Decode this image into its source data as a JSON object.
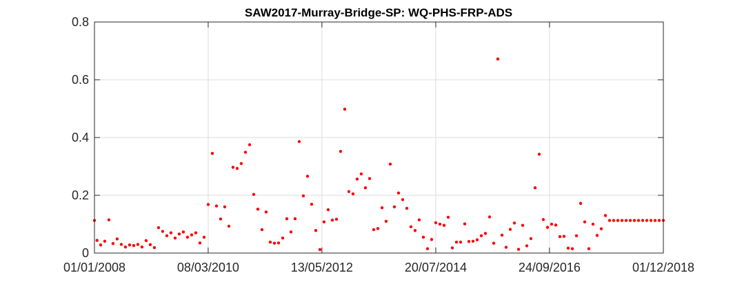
{
  "chart_data": {
    "type": "scatter",
    "title": "SAW2017-Murray-Bridge-SP: WQ-PHS-FRP-ADS",
    "xlabel": "",
    "ylabel": "",
    "x_axis_type": "date",
    "xlim": [
      "2008-01-01",
      "2018-12-01"
    ],
    "ylim": [
      0,
      0.8
    ],
    "x_ticks": [
      "2008-01-01",
      "2010-03-08",
      "2012-05-13",
      "2014-07-20",
      "2016-09-24",
      "2018-12-01"
    ],
    "x_tick_labels": [
      "01/01/2008",
      "08/03/2010",
      "13/05/2012",
      "20/07/2014",
      "24/09/2016",
      "01/12/2018"
    ],
    "y_ticks": [
      0,
      0.2,
      0.4,
      0.6,
      0.8
    ],
    "y_tick_labels": [
      "0",
      "0.2",
      "0.4",
      "0.6",
      "0.8"
    ],
    "grid": true,
    "marker_color": "#ff0000",
    "series": [
      {
        "points": [
          [
            "2008-01-01",
            0.113
          ],
          [
            "2008-01-19",
            0.044
          ],
          [
            "2008-02-13",
            0.028
          ],
          [
            "2008-03-13",
            0.041
          ],
          [
            "2008-04-11",
            0.115
          ],
          [
            "2008-05-10",
            0.033
          ],
          [
            "2008-06-08",
            0.049
          ],
          [
            "2008-07-07",
            0.03
          ],
          [
            "2008-08-05",
            0.021
          ],
          [
            "2008-09-03",
            0.028
          ],
          [
            "2008-10-02",
            0.026
          ],
          [
            "2008-10-31",
            0.03
          ],
          [
            "2008-11-29",
            0.021
          ],
          [
            "2008-12-28",
            0.043
          ],
          [
            "2009-01-26",
            0.029
          ],
          [
            "2009-02-24",
            0.019
          ],
          [
            "2009-03-25",
            0.088
          ],
          [
            "2009-04-23",
            0.075
          ],
          [
            "2009-05-22",
            0.06
          ],
          [
            "2009-06-20",
            0.07
          ],
          [
            "2009-07-19",
            0.052
          ],
          [
            "2009-08-17",
            0.066
          ],
          [
            "2009-09-15",
            0.073
          ],
          [
            "2009-10-14",
            0.055
          ],
          [
            "2009-11-12",
            0.063
          ],
          [
            "2009-12-11",
            0.07
          ],
          [
            "2010-01-09",
            0.035
          ],
          [
            "2010-02-07",
            0.055
          ],
          [
            "2010-03-08",
            0.168
          ],
          [
            "2010-04-06",
            0.345
          ],
          [
            "2010-05-05",
            0.163
          ],
          [
            "2010-06-03",
            0.118
          ],
          [
            "2010-07-02",
            0.16
          ],
          [
            "2010-07-31",
            0.093
          ],
          [
            "2010-08-29",
            0.297
          ],
          [
            "2010-09-27",
            0.293
          ],
          [
            "2010-10-26",
            0.31
          ],
          [
            "2010-11-24",
            0.349
          ],
          [
            "2010-12-23",
            0.375
          ],
          [
            "2011-01-21",
            0.203
          ],
          [
            "2011-02-19",
            0.152
          ],
          [
            "2011-03-20",
            0.081
          ],
          [
            "2011-04-18",
            0.142
          ],
          [
            "2011-05-17",
            0.038
          ],
          [
            "2011-06-15",
            0.034
          ],
          [
            "2011-07-14",
            0.035
          ],
          [
            "2011-08-12",
            0.052
          ],
          [
            "2011-09-10",
            0.119
          ],
          [
            "2011-10-09",
            0.073
          ],
          [
            "2011-11-07",
            0.119
          ],
          [
            "2011-12-06",
            0.386
          ],
          [
            "2012-01-04",
            0.198
          ],
          [
            "2012-02-02",
            0.266
          ],
          [
            "2012-03-02",
            0.169
          ],
          [
            "2012-03-31",
            0.078
          ],
          [
            "2012-04-29",
            0.012
          ],
          [
            "2012-05-28",
            0.108
          ],
          [
            "2012-06-26",
            0.15
          ],
          [
            "2012-07-25",
            0.114
          ],
          [
            "2012-08-23",
            0.117
          ],
          [
            "2012-09-21",
            0.352
          ],
          [
            "2012-10-20",
            0.498
          ],
          [
            "2012-11-18",
            0.213
          ],
          [
            "2012-12-17",
            0.205
          ],
          [
            "2013-01-15",
            0.256
          ],
          [
            "2013-02-13",
            0.274
          ],
          [
            "2013-03-14",
            0.226
          ],
          [
            "2013-04-12",
            0.258
          ],
          [
            "2013-05-11",
            0.081
          ],
          [
            "2013-06-09",
            0.085
          ],
          [
            "2013-07-08",
            0.157
          ],
          [
            "2013-08-06",
            0.11
          ],
          [
            "2013-09-04",
            0.308
          ],
          [
            "2013-10-03",
            0.16
          ],
          [
            "2013-11-01",
            0.208
          ],
          [
            "2013-11-30",
            0.185
          ],
          [
            "2013-12-29",
            0.155
          ],
          [
            "2014-01-27",
            0.091
          ],
          [
            "2014-02-25",
            0.078
          ],
          [
            "2014-03-26",
            0.115
          ],
          [
            "2014-04-24",
            0.055
          ],
          [
            "2014-05-23",
            0.015
          ],
          [
            "2014-06-21",
            0.047
          ],
          [
            "2014-07-20",
            0.105
          ],
          [
            "2014-08-18",
            0.1
          ],
          [
            "2014-09-16",
            0.096
          ],
          [
            "2014-10-15",
            0.124
          ],
          [
            "2014-11-13",
            0.018
          ],
          [
            "2014-12-12",
            0.038
          ],
          [
            "2015-01-10",
            0.038
          ],
          [
            "2015-02-08",
            0.101
          ],
          [
            "2015-03-09",
            0.04
          ],
          [
            "2015-04-07",
            0.041
          ],
          [
            "2015-05-06",
            0.046
          ],
          [
            "2015-06-04",
            0.06
          ],
          [
            "2015-07-03",
            0.068
          ],
          [
            "2015-08-01",
            0.125
          ],
          [
            "2015-08-30",
            0.034
          ],
          [
            "2015-09-28",
            0.672
          ],
          [
            "2015-10-27",
            0.062
          ],
          [
            "2015-11-25",
            0.02
          ],
          [
            "2015-12-24",
            0.082
          ],
          [
            "2016-01-22",
            0.104
          ],
          [
            "2016-02-20",
            0.013
          ],
          [
            "2016-03-20",
            0.096
          ],
          [
            "2016-04-18",
            0.025
          ],
          [
            "2016-05-17",
            0.05
          ],
          [
            "2016-06-15",
            0.226
          ],
          [
            "2016-07-14",
            0.342
          ],
          [
            "2016-08-12",
            0.116
          ],
          [
            "2016-09-10",
            0.089
          ],
          [
            "2016-10-09",
            0.1
          ],
          [
            "2016-11-07",
            0.097
          ],
          [
            "2016-12-06",
            0.057
          ],
          [
            "2017-01-04",
            0.058
          ],
          [
            "2017-02-02",
            0.017
          ],
          [
            "2017-03-03",
            0.015
          ],
          [
            "2017-04-01",
            0.06
          ],
          [
            "2017-04-30",
            0.172
          ],
          [
            "2017-05-29",
            0.108
          ],
          [
            "2017-06-27",
            0.015
          ],
          [
            "2017-07-26",
            0.1
          ],
          [
            "2017-08-24",
            0.061
          ],
          [
            "2017-09-22",
            0.084
          ],
          [
            "2017-10-21",
            0.13
          ],
          [
            "2017-11-19",
            0.113
          ],
          [
            "2017-12-18",
            0.113
          ],
          [
            "2018-01-16",
            0.113
          ],
          [
            "2018-02-14",
            0.113
          ],
          [
            "2018-03-15",
            0.113
          ],
          [
            "2018-04-13",
            0.113
          ],
          [
            "2018-05-12",
            0.113
          ],
          [
            "2018-06-10",
            0.113
          ],
          [
            "2018-07-09",
            0.113
          ],
          [
            "2018-08-07",
            0.113
          ],
          [
            "2018-09-05",
            0.113
          ],
          [
            "2018-10-04",
            0.113
          ],
          [
            "2018-11-02",
            0.113
          ],
          [
            "2018-12-01",
            0.113
          ]
        ]
      }
    ]
  }
}
